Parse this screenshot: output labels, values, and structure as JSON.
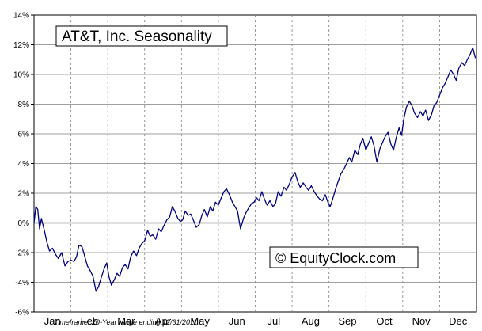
{
  "chart_data": {
    "type": "line",
    "title": "AT&T, Inc. Seasonality",
    "watermark": "© EquityClock.com",
    "footnote": "Timeframe: 20-Year range ending 12/31/2011",
    "xlabel": "",
    "ylabel": "",
    "categories": [
      "Jan",
      "Feb",
      "Mar",
      "Apr",
      "May",
      "Jun",
      "Jul",
      "Aug",
      "Sep",
      "Oct",
      "Nov",
      "Dec"
    ],
    "y_ticks": [
      "14%",
      "12%",
      "10%",
      "8%",
      "6%",
      "4%",
      "2%",
      "0%",
      "-2%",
      "-4%",
      "-6%"
    ],
    "ylim": [
      -6,
      14
    ],
    "grid": true,
    "line_color": "#000080",
    "series": [
      {
        "name": "",
        "x": [
          0.0,
          0.05,
          0.1,
          0.15,
          0.2,
          0.28,
          0.35,
          0.42,
          0.5,
          0.58,
          0.66,
          0.75,
          0.84,
          0.92,
          1.0,
          1.08,
          1.15,
          1.22,
          1.3,
          1.38,
          1.45,
          1.52,
          1.6,
          1.68,
          1.75,
          1.82,
          1.9,
          1.97,
          2.03,
          2.1,
          2.18,
          2.25,
          2.32,
          2.4,
          2.47,
          2.55,
          2.62,
          2.7,
          2.78,
          2.85,
          2.92,
          3.0,
          3.08,
          3.15,
          3.22,
          3.3,
          3.38,
          3.45,
          3.52,
          3.6,
          3.68,
          3.75,
          3.82,
          3.9,
          3.97,
          4.03,
          4.1,
          4.18,
          4.25,
          4.32,
          4.4,
          4.48,
          4.55,
          4.62,
          4.7,
          4.78,
          4.85,
          4.92,
          5.0,
          5.08,
          5.15,
          5.22,
          5.3,
          5.38,
          5.45,
          5.52,
          5.6,
          5.68,
          5.75,
          5.82,
          5.9,
          5.97,
          6.03,
          6.1,
          6.18,
          6.25,
          6.32,
          6.4,
          6.48,
          6.55,
          6.62,
          6.7,
          6.78,
          6.85,
          6.92,
          7.0,
          7.08,
          7.15,
          7.22,
          7.3,
          7.38,
          7.45,
          7.52,
          7.6,
          7.68,
          7.75,
          7.82,
          7.9,
          7.97,
          8.03,
          8.1,
          8.18,
          8.25,
          8.32,
          8.4,
          8.48,
          8.55,
          8.62,
          8.7,
          8.78,
          8.85,
          8.92,
          9.0,
          9.08,
          9.15,
          9.22,
          9.3,
          9.38,
          9.45,
          9.52,
          9.6,
          9.68,
          9.75,
          9.82,
          9.9,
          9.97,
          10.03,
          10.1,
          10.18,
          10.25,
          10.32,
          10.4,
          10.48,
          10.55,
          10.62,
          10.7,
          10.78,
          10.85,
          10.92,
          11.0,
          11.08,
          11.15,
          11.22,
          11.3,
          11.38,
          11.45,
          11.52,
          11.6,
          11.68,
          11.75,
          11.82,
          11.9,
          11.97
        ],
        "y": [
          0.0,
          1.1,
          0.9,
          -0.4,
          0.3,
          -0.5,
          -1.3,
          -1.9,
          -1.7,
          -2.1,
          -2.4,
          -2.0,
          -2.9,
          -2.6,
          -2.5,
          -2.6,
          -2.3,
          -1.5,
          -1.6,
          -2.3,
          -2.9,
          -3.2,
          -3.6,
          -4.6,
          -4.3,
          -3.7,
          -3.1,
          -2.7,
          -3.6,
          -4.2,
          -3.8,
          -3.4,
          -3.6,
          -3.0,
          -2.8,
          -3.1,
          -2.3,
          -1.9,
          -2.2,
          -1.7,
          -1.4,
          -1.2,
          -0.5,
          -0.9,
          -0.8,
          -1.1,
          -0.4,
          -0.6,
          -0.2,
          0.2,
          0.4,
          1.1,
          0.8,
          0.3,
          0.1,
          0.2,
          0.8,
          0.5,
          0.6,
          0.2,
          -0.3,
          -0.1,
          0.5,
          0.9,
          0.4,
          1.1,
          0.8,
          1.4,
          1.2,
          1.7,
          2.1,
          2.3,
          1.9,
          1.4,
          1.1,
          0.8,
          -0.4,
          0.3,
          0.7,
          1.0,
          1.3,
          1.4,
          1.7,
          1.5,
          2.1,
          1.6,
          1.2,
          1.5,
          1.1,
          1.3,
          2.1,
          1.8,
          2.4,
          2.2,
          2.6,
          3.1,
          3.4,
          2.8,
          2.4,
          2.7,
          2.4,
          2.2,
          2.5,
          2.1,
          1.8,
          1.6,
          1.5,
          1.9,
          1.4,
          1.1,
          1.6,
          2.3,
          2.8,
          3.3,
          3.6,
          4.0,
          4.4,
          4.1,
          4.9,
          4.6,
          5.3,
          5.7,
          4.9,
          5.4,
          5.8,
          5.2,
          4.1,
          5.0,
          5.4,
          5.8,
          6.1,
          5.3,
          4.9,
          5.7,
          6.4,
          5.9,
          7.0,
          7.8,
          8.2,
          7.9,
          7.4,
          7.1,
          7.5,
          7.2,
          7.6,
          6.9,
          7.3,
          7.9,
          8.1,
          8.6,
          9.1,
          9.4,
          9.8,
          10.3,
          10.0,
          9.6,
          10.4,
          10.8,
          10.6,
          11.0,
          11.3,
          11.8,
          11.1
        ]
      }
    ]
  }
}
